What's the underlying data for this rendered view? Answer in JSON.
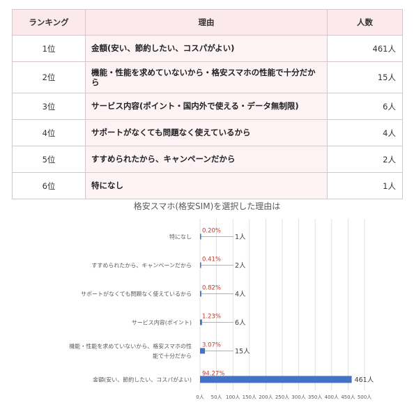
{
  "table": {
    "headers": [
      "ランキング",
      "理由",
      "人数"
    ],
    "rows": [
      {
        "rank": "1位",
        "reason": "金額(安い、節約したい、コスパがよい)",
        "count": "461人"
      },
      {
        "rank": "2位",
        "reason": "機能・性能を求めていないから・格安スマホの性能で十分だから",
        "count": "15人"
      },
      {
        "rank": "3位",
        "reason": "サービス内容(ポイント・国内外で使える・データ無制限)",
        "count": "6人"
      },
      {
        "rank": "4位",
        "reason": "サポートがなくても問題なく使えているから",
        "count": "4人"
      },
      {
        "rank": "5位",
        "reason": "すすめられたから、キャンペーンだから",
        "count": "2人"
      },
      {
        "rank": "6位",
        "reason": "特になし",
        "count": "1人"
      }
    ]
  },
  "chart_data": {
    "type": "bar",
    "orientation": "horizontal",
    "title": "格安スマホ(格安SIM)を選択した理由は",
    "categories": [
      [
        "特になし"
      ],
      [
        "すすめられたから、キャンペーンだから"
      ],
      [
        "サポートがなくても問題なく使えているから"
      ],
      [
        "サービス内容(ポイント)"
      ],
      [
        "機能・性能を求めていないから、格安スマホの性",
        "能で十分だから"
      ],
      [
        "金額(安い、節約したい、コスパがよい)"
      ]
    ],
    "values": [
      1,
      2,
      4,
      6,
      15,
      461
    ],
    "value_labels": [
      "1人",
      "2人",
      "4人",
      "6人",
      "15人",
      "461人"
    ],
    "percent_labels": [
      "0.20%",
      "0.41%",
      "0.82%",
      "1.23%",
      "3.07%",
      "94.27%"
    ],
    "xlim": [
      0,
      500
    ],
    "ticks": [
      "0人",
      "50人",
      "100人",
      "150人",
      "200人",
      "250人",
      "300人",
      "350人",
      "400人",
      "450人",
      "500人"
    ],
    "tick_values": [
      0,
      50,
      100,
      150,
      200,
      250,
      300,
      350,
      400,
      450,
      500
    ],
    "grid": true,
    "colors": {
      "bar": "#4472c4",
      "grid": "#d9d9d9",
      "percent": "#c0392b"
    }
  }
}
